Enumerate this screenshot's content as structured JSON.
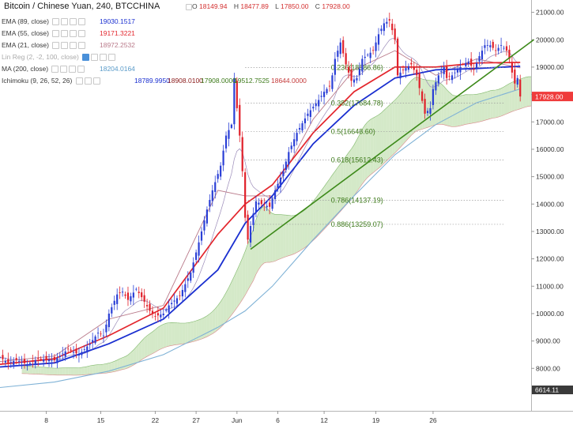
{
  "title": "Bitcoin / Chinese Yuan, 240, BTCCHINA",
  "ohlc": {
    "o_label": "O",
    "o": "18149.94",
    "h_label": "H",
    "h": "18477.89",
    "l_label": "L",
    "l": "17850.00",
    "c_label": "C",
    "c": "17928.00"
  },
  "indicators": [
    {
      "label": "EMA (89, close)",
      "values": [
        "19030.1517"
      ]
    },
    {
      "label": "EMA (55, close)",
      "values": [
        "19171.3221"
      ]
    },
    {
      "label": "EMA (21, close)",
      "values": [
        "18972.2532"
      ]
    },
    {
      "label": "Lin Reg (2, -2, 100, close)",
      "values": []
    },
    {
      "label": "MA (200, close)",
      "values": [
        "18204.0164"
      ]
    },
    {
      "label": "Ichimoku (9, 26, 52, 26)",
      "values": [
        "18789.9950",
        "18908.0100",
        "17908.0000",
        "19512.7525",
        "18644.0000"
      ]
    }
  ],
  "colors": {
    "up": "#2a3fd6",
    "down": "#e0202a",
    "ema89": "#1a2fd0",
    "ema55": "#e3262d",
    "ema21": "#b97a8a",
    "ma200": "#7fb2d6",
    "fib": "#3d7a1a",
    "trend": "#3d8a1a",
    "cloud_bull": "#c6e2b6",
    "cloud_bear": "#f6cccc",
    "price_badge": "#ef3b3b",
    "low_badge": "#3a3a3a"
  },
  "chart_data": {
    "type": "candlestick",
    "x_tick_labels": [
      "8",
      "15",
      "22",
      "27",
      "Jun",
      "6",
      "12",
      "19",
      "26"
    ],
    "y_ticks": [
      8000,
      9000,
      10000,
      11000,
      12000,
      13000,
      14000,
      15000,
      16000,
      17000,
      18000,
      19000,
      20000,
      21000
    ],
    "y_tick_labels": [
      "8000.00",
      "9000.00",
      "10000.00",
      "11000.00",
      "12000.00",
      "13000.00",
      "14000.00",
      "15000.00",
      "16000.00",
      "17000.00",
      "18000.00",
      "19000.00",
      "20000.00",
      "21000.00"
    ],
    "ylim": [
      6450,
      21450
    ],
    "last_price_label": "17928.00",
    "low_label": "6614.11",
    "price_path": [
      [
        0,
        8400
      ],
      [
        3,
        8200
      ],
      [
        6,
        8300
      ],
      [
        10,
        8150
      ],
      [
        14,
        8350
      ],
      [
        20,
        8300
      ],
      [
        25,
        8700
      ],
      [
        29,
        8500
      ],
      [
        33,
        8900
      ],
      [
        36,
        9300
      ],
      [
        38,
        9200
      ],
      [
        40,
        10000
      ],
      [
        43,
        10700
      ],
      [
        45,
        10800
      ],
      [
        47,
        10500
      ],
      [
        50,
        10900
      ],
      [
        52,
        10600
      ],
      [
        55,
        10100
      ],
      [
        57,
        9900
      ],
      [
        60,
        10000
      ],
      [
        62,
        10300
      ],
      [
        66,
        10650
      ],
      [
        70,
        11500
      ],
      [
        73,
        12600
      ],
      [
        76,
        13800
      ],
      [
        78,
        14500
      ],
      [
        81,
        15400
      ],
      [
        83,
        16500
      ],
      [
        85,
        16900
      ],
      [
        86,
        18600
      ],
      [
        87,
        17500
      ],
      [
        88,
        16500
      ],
      [
        89,
        15200
      ],
      [
        90,
        13500
      ],
      [
        91,
        12700
      ],
      [
        92,
        13200
      ],
      [
        94,
        14100
      ],
      [
        96,
        14000
      ],
      [
        99,
        13900
      ],
      [
        101,
        14500
      ],
      [
        104,
        15200
      ],
      [
        106,
        15900
      ],
      [
        109,
        16600
      ],
      [
        113,
        17300
      ],
      [
        117,
        17800
      ],
      [
        119,
        18100
      ],
      [
        121,
        18300
      ],
      [
        122,
        18700
      ],
      [
        123,
        19300
      ],
      [
        125,
        19900
      ],
      [
        127,
        19100
      ],
      [
        129,
        18500
      ],
      [
        131,
        18600
      ],
      [
        133,
        19300
      ],
      [
        137,
        19600
      ],
      [
        139,
        20200
      ],
      [
        141,
        20600
      ],
      [
        143,
        20700
      ],
      [
        145,
        20000
      ],
      [
        146,
        18700
      ],
      [
        148,
        18900
      ],
      [
        151,
        19100
      ],
      [
        153,
        18700
      ],
      [
        156,
        17300
      ],
      [
        158,
        17500
      ],
      [
        159,
        18200
      ],
      [
        161,
        18700
      ],
      [
        163,
        19000
      ],
      [
        164,
        18600
      ],
      [
        166,
        18700
      ],
      [
        168,
        18900
      ],
      [
        170,
        19100
      ],
      [
        172,
        19200
      ],
      [
        174,
        18900
      ],
      [
        176,
        19400
      ],
      [
        178,
        19800
      ],
      [
        180,
        19800
      ],
      [
        182,
        19600
      ],
      [
        184,
        19800
      ],
      [
        186,
        19600
      ],
      [
        187,
        19300
      ],
      [
        188,
        18800
      ],
      [
        189,
        18400
      ],
      [
        190,
        18600
      ],
      [
        191,
        17928
      ]
    ],
    "series": [
      {
        "name": "EMA (89, close)",
        "values": [
          [
            0,
            8050
          ],
          [
            20,
            8200
          ],
          [
            40,
            8900
          ],
          [
            60,
            9800
          ],
          [
            80,
            11600
          ],
          [
            90,
            13300
          ],
          [
            100,
            14300
          ],
          [
            115,
            16200
          ],
          [
            130,
            17600
          ],
          [
            145,
            18600
          ],
          [
            160,
            18900
          ],
          [
            175,
            18950
          ],
          [
            191,
            19030
          ]
        ]
      },
      {
        "name": "EMA (55, close)",
        "values": [
          [
            0,
            8150
          ],
          [
            20,
            8350
          ],
          [
            40,
            9200
          ],
          [
            60,
            10200
          ],
          [
            80,
            12900
          ],
          [
            90,
            14000
          ],
          [
            100,
            14700
          ],
          [
            115,
            16600
          ],
          [
            130,
            18100
          ],
          [
            145,
            19000
          ],
          [
            160,
            19000
          ],
          [
            175,
            19150
          ],
          [
            191,
            19171
          ]
        ]
      },
      {
        "name": "EMA (21, close)",
        "values": [
          [
            0,
            8250
          ],
          [
            20,
            8450
          ],
          [
            40,
            9800
          ],
          [
            60,
            10300
          ],
          [
            80,
            14500
          ],
          [
            90,
            14300
          ],
          [
            100,
            14300
          ],
          [
            115,
            17100
          ],
          [
            130,
            18900
          ],
          [
            145,
            19600
          ],
          [
            160,
            18700
          ],
          [
            175,
            19300
          ],
          [
            191,
            18972
          ]
        ]
      },
      {
        "name": "MA (200, close)",
        "values": [
          [
            0,
            7300
          ],
          [
            20,
            7500
          ],
          [
            40,
            7900
          ],
          [
            60,
            8500
          ],
          [
            80,
            9500
          ],
          [
            90,
            10100
          ],
          [
            100,
            11000
          ],
          [
            115,
            12700
          ],
          [
            130,
            14300
          ],
          [
            145,
            15800
          ],
          [
            160,
            16900
          ],
          [
            175,
            17700
          ],
          [
            191,
            18204
          ]
        ]
      }
    ],
    "trendline": {
      "from": [
        92,
        12350
      ],
      "to": [
        196,
        20000
      ]
    },
    "fibonacci": {
      "anchor_x": 90,
      "levels": [
        {
          "label": "0.236(18986.86)",
          "value": 18986.86
        },
        {
          "label": "0.382(17684.78)",
          "value": 17684.78
        },
        {
          "label": "0.5(16648.60)",
          "value": 16648.6
        },
        {
          "label": "0.618(15612.43)",
          "value": 15612.43
        },
        {
          "label": "0.786(14137.19)",
          "value": 14137.19
        },
        {
          "label": "0.886(13259.07)",
          "value": 13259.07
        }
      ]
    }
  }
}
